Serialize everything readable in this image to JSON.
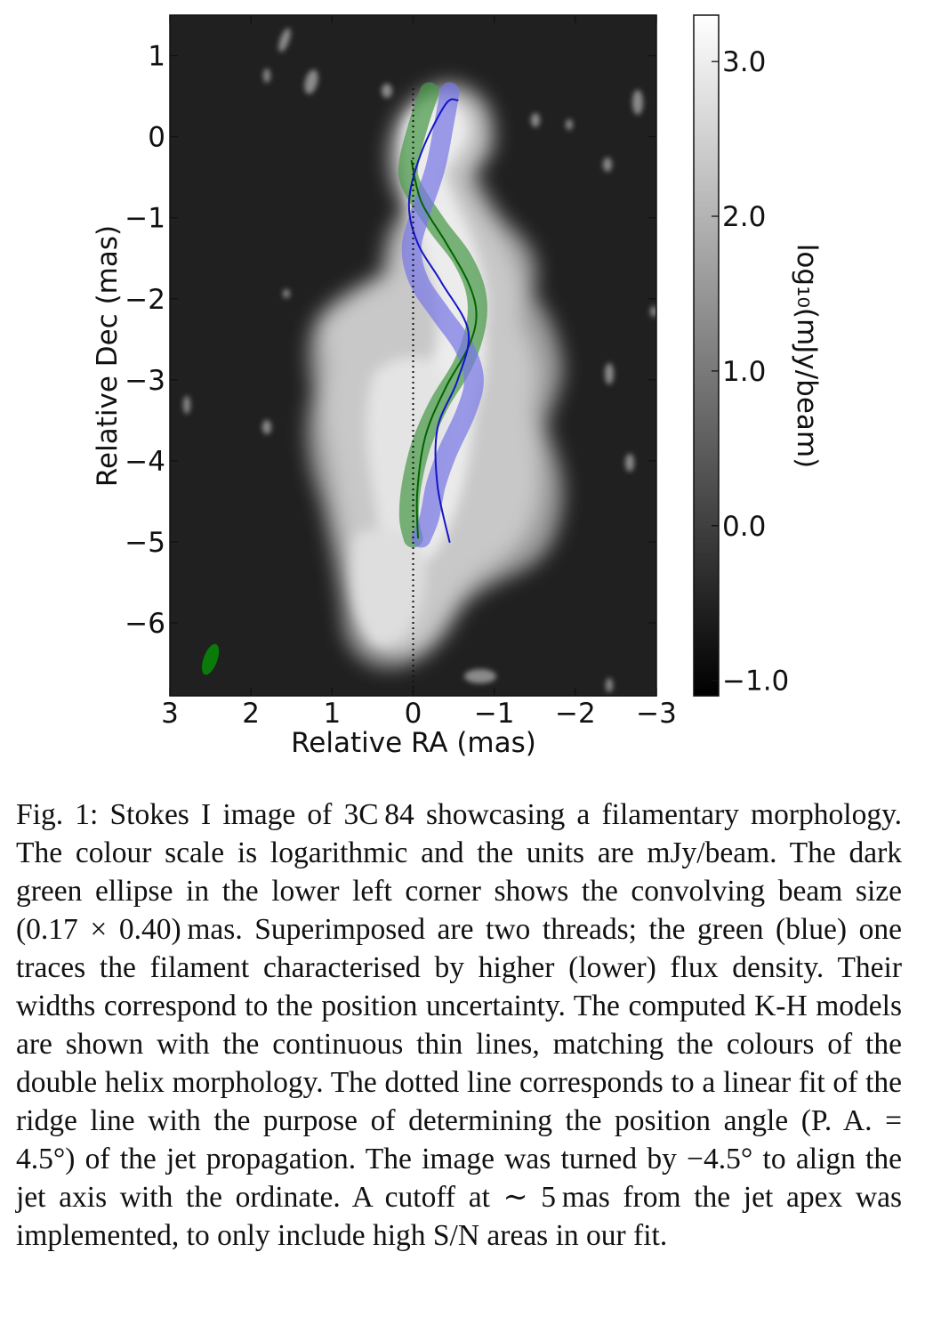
{
  "chart_data": {
    "type": "heatmap",
    "title": "",
    "xlabel": "Relative RA (mas)",
    "ylabel": "Relative Dec (mas)",
    "xlim": [
      3,
      -3
    ],
    "ylim": [
      -6.9,
      1.5
    ],
    "x_ticks": [
      3,
      2,
      1,
      0,
      -1,
      -2,
      -3
    ],
    "x_tick_labels": [
      "3",
      "2",
      "1",
      "0",
      "−1",
      "−2",
      "−3"
    ],
    "y_ticks": [
      1,
      0,
      -1,
      -2,
      -3,
      -4,
      -5,
      -6
    ],
    "y_tick_labels": [
      "1",
      "0",
      "−1",
      "−2",
      "−3",
      "−4",
      "−5",
      "−6"
    ],
    "colorbar": {
      "label": "log₁₀(mJy/beam)",
      "range": [
        -1.1,
        3.3
      ],
      "ticks": [
        3.0,
        2.0,
        1.0,
        0.0,
        -1.0
      ],
      "tick_labels": [
        "3.0",
        "2.0",
        "1.0",
        "0.0",
        "−1.0"
      ],
      "colormap": "gray"
    },
    "background_color": "#202020",
    "series": [
      {
        "name": "green thread",
        "kind": "band",
        "color": "#4a9a4a",
        "x": [
          -0.2,
          -0.08,
          0.05,
          0.02,
          -0.3,
          -0.6,
          -0.77,
          -0.78,
          -0.62,
          -0.32,
          -0.1,
          0.02,
          0.05,
          0.0
        ],
        "y": [
          0.55,
          0.2,
          -0.3,
          -0.6,
          -1.1,
          -1.5,
          -1.9,
          -2.3,
          -2.8,
          -3.3,
          -3.8,
          -4.3,
          -4.7,
          -4.95
        ]
      },
      {
        "name": "blue thread",
        "kind": "band",
        "color": "#7878e6",
        "x": [
          -0.45,
          -0.38,
          -0.27,
          -0.07,
          0.02,
          -0.08,
          -0.35,
          -0.63,
          -0.75,
          -0.65,
          -0.42,
          -0.28,
          -0.2,
          -0.1
        ],
        "y": [
          0.55,
          0.15,
          -0.4,
          -1.0,
          -1.4,
          -1.8,
          -2.2,
          -2.6,
          -3.0,
          -3.4,
          -3.9,
          -4.3,
          -4.7,
          -4.95
        ]
      },
      {
        "name": "green K-H model",
        "kind": "line",
        "color": "#006400",
        "x": [
          0.02,
          -0.1,
          -0.4,
          -0.68,
          -0.78,
          -0.68,
          -0.4,
          -0.15,
          -0.05,
          -0.06
        ],
        "y": [
          -0.3,
          -0.8,
          -1.3,
          -1.8,
          -2.2,
          -2.6,
          -3.1,
          -3.7,
          -4.4,
          -4.95
        ]
      },
      {
        "name": "blue K-H model",
        "kind": "line",
        "color": "#1414c8",
        "x": [
          -0.55,
          -0.4,
          -0.1,
          0.05,
          -0.05,
          -0.35,
          -0.68,
          -0.55,
          -0.3,
          -0.3,
          -0.45
        ],
        "y": [
          0.45,
          0.4,
          -0.2,
          -0.8,
          -1.3,
          -1.8,
          -2.4,
          -3.0,
          -3.6,
          -4.3,
          -5.0
        ]
      },
      {
        "name": "linear ridge fit",
        "kind": "dotted-line",
        "color": "#111111",
        "x": [
          0.0,
          0.0
        ],
        "y": [
          0.6,
          -6.9
        ]
      }
    ],
    "beam": {
      "x": 2.5,
      "y": -6.45,
      "major": 0.4,
      "minor": 0.17,
      "color": "#0a7a0a"
    }
  },
  "caption": {
    "label": "Fig. 1:",
    "text": "Stokes I image of 3C 84 showcasing a filamentary morphology. The colour scale is logarithmic and the units are mJy/beam. The dark green ellipse in the lower left corner shows the convolving beam size (0.17 × 0.40) mas. Superimposed are two threads; the green (blue) one traces the filament characterised by higher (lower) flux density. Their widths correspond to the position uncertainty. The computed K-H models are shown with the continuous thin lines, matching the colours of the double helix morphology. The dotted line corresponds to a linear fit of the ridge line with the purpose of determining the position angle (P. A. = 4.5°) of the jet propagation. The image was turned by −4.5° to align the jet axis with the ordinate. A cutoff at ∼ 5 mas from the jet apex was implemented, to only include high S/N areas in our fit."
  }
}
